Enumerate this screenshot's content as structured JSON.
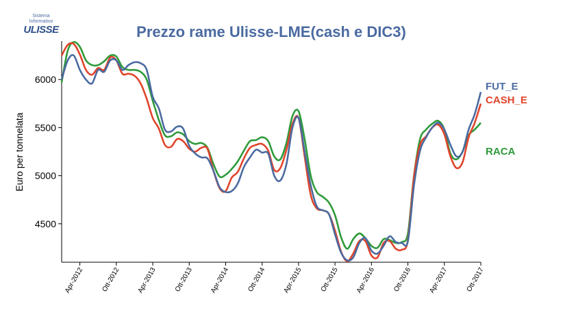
{
  "logo": {
    "line1": "Sistema",
    "line2": "Informativo",
    "brand": "ULISSE"
  },
  "chart_data": {
    "type": "line",
    "title": "Prezzo rame Ulisse-LME(cash e DIC3)",
    "ylabel": "Euro per tonnelata",
    "xlabel": "",
    "ylim": [
      4100,
      6400
    ],
    "yticks": [
      4500,
      5000,
      5500,
      6000
    ],
    "x_tick_labels": [
      "Apr-2012",
      "Ott-2012",
      "Apr-2013",
      "Ott-2013",
      "Apr-2014",
      "Ott-2014",
      "Apr-2015",
      "Ott-2015",
      "Apr-2016",
      "Ott-2016",
      "Apr-2017",
      "Ott-2017"
    ],
    "x_tick_positions": [
      3,
      9,
      15,
      21,
      27,
      33,
      39,
      45,
      51,
      57,
      63,
      69
    ],
    "x_range": [
      0,
      69
    ],
    "grid": false,
    "legend": "right, labels at line ends",
    "colors": {
      "title": "#4a6aa0",
      "FUT_E": "#4a6aa0",
      "CASH_E": "#e0442a",
      "RACA": "#2e9a3a"
    },
    "series": [
      {
        "name": "FUT_E",
        "label_color": "#4a6aa0",
        "points": [
          [
            0,
            6000
          ],
          [
            1,
            6200
          ],
          [
            2,
            6250
          ],
          [
            3,
            6100
          ],
          [
            4,
            6000
          ],
          [
            5,
            5960
          ],
          [
            6,
            6100
          ],
          [
            7,
            6080
          ],
          [
            8,
            6200
          ],
          [
            9,
            6200
          ],
          [
            10,
            6100
          ],
          [
            11,
            6150
          ],
          [
            12,
            6180
          ],
          [
            13,
            6170
          ],
          [
            14,
            6100
          ],
          [
            15,
            5820
          ],
          [
            16,
            5700
          ],
          [
            17,
            5480
          ],
          [
            18,
            5460
          ],
          [
            19,
            5510
          ],
          [
            20,
            5490
          ],
          [
            21,
            5310
          ],
          [
            22,
            5230
          ],
          [
            23,
            5190
          ],
          [
            24,
            5180
          ],
          [
            25,
            5050
          ],
          [
            26,
            4880
          ],
          [
            27,
            4830
          ],
          [
            28,
            4840
          ],
          [
            29,
            4920
          ],
          [
            30,
            5090
          ],
          [
            31,
            5190
          ],
          [
            32,
            5270
          ],
          [
            33,
            5240
          ],
          [
            34,
            5230
          ],
          [
            35,
            5000
          ],
          [
            36,
            4950
          ],
          [
            37,
            5120
          ],
          [
            38,
            5500
          ],
          [
            39,
            5600
          ],
          [
            40,
            5250
          ],
          [
            41,
            4900
          ],
          [
            42,
            4680
          ],
          [
            43,
            4640
          ],
          [
            44,
            4600
          ],
          [
            45,
            4390
          ],
          [
            46,
            4200
          ],
          [
            47,
            4120
          ],
          [
            48,
            4150
          ],
          [
            49,
            4300
          ],
          [
            50,
            4350
          ],
          [
            51,
            4220
          ],
          [
            52,
            4190
          ],
          [
            53,
            4270
          ],
          [
            54,
            4370
          ],
          [
            55,
            4310
          ],
          [
            56,
            4300
          ],
          [
            57,
            4320
          ],
          [
            58,
            4900
          ],
          [
            59,
            5260
          ],
          [
            60,
            5400
          ],
          [
            61,
            5500
          ],
          [
            62,
            5550
          ],
          [
            63,
            5480
          ],
          [
            64,
            5320
          ],
          [
            65,
            5200
          ],
          [
            66,
            5250
          ],
          [
            67,
            5480
          ],
          [
            68,
            5640
          ],
          [
            69,
            5870
          ]
        ]
      },
      {
        "name": "CASH_E",
        "label_color": "#e0442a",
        "points": [
          [
            0,
            6250
          ],
          [
            1,
            6360
          ],
          [
            2,
            6370
          ],
          [
            3,
            6260
          ],
          [
            4,
            6100
          ],
          [
            5,
            6050
          ],
          [
            6,
            6120
          ],
          [
            7,
            6100
          ],
          [
            8,
            6230
          ],
          [
            9,
            6200
          ],
          [
            10,
            6060
          ],
          [
            11,
            6060
          ],
          [
            12,
            6040
          ],
          [
            13,
            5960
          ],
          [
            14,
            5800
          ],
          [
            15,
            5600
          ],
          [
            16,
            5490
          ],
          [
            17,
            5320
          ],
          [
            18,
            5300
          ],
          [
            19,
            5380
          ],
          [
            20,
            5360
          ],
          [
            21,
            5280
          ],
          [
            22,
            5250
          ],
          [
            23,
            5290
          ],
          [
            24,
            5280
          ],
          [
            25,
            5050
          ],
          [
            26,
            4870
          ],
          [
            27,
            4840
          ],
          [
            28,
            4980
          ],
          [
            29,
            5040
          ],
          [
            30,
            5180
          ],
          [
            31,
            5290
          ],
          [
            32,
            5320
          ],
          [
            33,
            5330
          ],
          [
            34,
            5260
          ],
          [
            35,
            5060
          ],
          [
            36,
            5080
          ],
          [
            37,
            5270
          ],
          [
            38,
            5540
          ],
          [
            39,
            5600
          ],
          [
            40,
            5200
          ],
          [
            41,
            4800
          ],
          [
            42,
            4660
          ],
          [
            43,
            4640
          ],
          [
            44,
            4600
          ],
          [
            45,
            4430
          ],
          [
            46,
            4210
          ],
          [
            47,
            4110
          ],
          [
            48,
            4190
          ],
          [
            49,
            4320
          ],
          [
            50,
            4320
          ],
          [
            51,
            4170
          ],
          [
            52,
            4150
          ],
          [
            53,
            4300
          ],
          [
            54,
            4320
          ],
          [
            55,
            4240
          ],
          [
            56,
            4230
          ],
          [
            57,
            4330
          ],
          [
            58,
            4990
          ],
          [
            59,
            5320
          ],
          [
            60,
            5410
          ],
          [
            61,
            5500
          ],
          [
            62,
            5530
          ],
          [
            63,
            5430
          ],
          [
            64,
            5200
          ],
          [
            65,
            5080
          ],
          [
            66,
            5140
          ],
          [
            67,
            5400
          ],
          [
            68,
            5550
          ],
          [
            69,
            5750
          ]
        ]
      },
      {
        "name": "RACA",
        "label_color": "#2e9a3a",
        "points": [
          [
            0,
            5970
          ],
          [
            1,
            6300
          ],
          [
            2,
            6390
          ],
          [
            3,
            6340
          ],
          [
            4,
            6200
          ],
          [
            5,
            6150
          ],
          [
            6,
            6150
          ],
          [
            7,
            6190
          ],
          [
            8,
            6250
          ],
          [
            9,
            6240
          ],
          [
            10,
            6130
          ],
          [
            11,
            6100
          ],
          [
            12,
            6100
          ],
          [
            13,
            6080
          ],
          [
            14,
            6000
          ],
          [
            15,
            5780
          ],
          [
            16,
            5580
          ],
          [
            17,
            5420
          ],
          [
            18,
            5410
          ],
          [
            19,
            5450
          ],
          [
            20,
            5430
          ],
          [
            21,
            5360
          ],
          [
            22,
            5330
          ],
          [
            23,
            5340
          ],
          [
            24,
            5290
          ],
          [
            25,
            5120
          ],
          [
            26,
            4990
          ],
          [
            27,
            5010
          ],
          [
            28,
            5070
          ],
          [
            29,
            5150
          ],
          [
            30,
            5260
          ],
          [
            31,
            5360
          ],
          [
            32,
            5370
          ],
          [
            33,
            5400
          ],
          [
            34,
            5360
          ],
          [
            35,
            5200
          ],
          [
            36,
            5170
          ],
          [
            37,
            5340
          ],
          [
            38,
            5620
          ],
          [
            39,
            5670
          ],
          [
            40,
            5380
          ],
          [
            41,
            5000
          ],
          [
            42,
            4830
          ],
          [
            43,
            4780
          ],
          [
            44,
            4720
          ],
          [
            45,
            4590
          ],
          [
            46,
            4360
          ],
          [
            47,
            4240
          ],
          [
            48,
            4340
          ],
          [
            49,
            4400
          ],
          [
            50,
            4350
          ],
          [
            51,
            4270
          ],
          [
            52,
            4250
          ],
          [
            53,
            4340
          ],
          [
            54,
            4330
          ],
          [
            55,
            4300
          ],
          [
            56,
            4310
          ],
          [
            57,
            4400
          ],
          [
            58,
            5000
          ],
          [
            59,
            5380
          ],
          [
            60,
            5480
          ],
          [
            61,
            5540
          ],
          [
            62,
            5570
          ],
          [
            63,
            5480
          ],
          [
            64,
            5230
          ],
          [
            65,
            5170
          ],
          [
            66,
            5250
          ],
          [
            67,
            5420
          ],
          [
            68,
            5480
          ],
          [
            69,
            5550
          ]
        ]
      }
    ],
    "series_labels": [
      {
        "name": "FUT_E",
        "color": "#4a6aa0"
      },
      {
        "name": "CASH_E",
        "color": "#e0442a"
      },
      {
        "name": "RACA",
        "color": "#2e9a3a"
      }
    ]
  }
}
